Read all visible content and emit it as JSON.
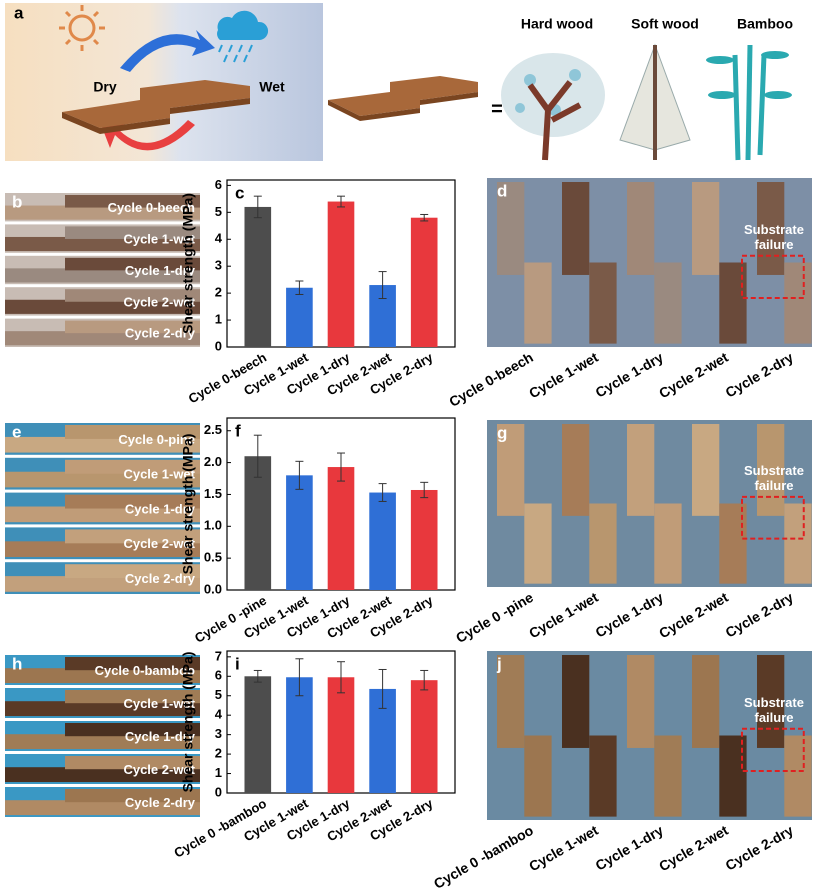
{
  "figure": {
    "panel_a": {
      "label": "a",
      "dry": "Dry",
      "wet": "Wet",
      "equals": "=",
      "woods": [
        "Hard wood",
        "Soft wood",
        "Bamboo"
      ]
    },
    "rows": [
      {
        "photo_label": "b",
        "photo_captions": [
          "Cycle 0-beech",
          "Cycle 1-wet",
          "Cycle 1-dry",
          "Cycle 2-wet",
          "Cycle 2-dry"
        ],
        "chart_label": "c",
        "sample_label": "d",
        "sample_captions": [
          "Cycle 0-beech",
          "Cycle 1-wet",
          "Cycle 1-dry",
          "Cycle 2-wet",
          "Cycle 2-dry"
        ],
        "failure_note": "Substrate failure"
      },
      {
        "photo_label": "e",
        "photo_captions": [
          "Cycle 0-pine",
          "Cycle 1-wet",
          "Cycle 1-dry",
          "Cycle 2-wet",
          "Cycle 2-dry"
        ],
        "chart_label": "f",
        "sample_label": "g",
        "sample_captions": [
          "Cycle 0 -pine",
          "Cycle 1-wet",
          "Cycle 1-dry",
          "Cycle 2-wet",
          "Cycle 2-dry"
        ],
        "failure_note": "Substrate failure"
      },
      {
        "photo_label": "h",
        "photo_captions": [
          "Cycle 0-bamboo",
          "Cycle 1-wet",
          "Cycle 1-dry",
          "Cycle 2-wet",
          "Cycle 2-dry"
        ],
        "chart_label": "i",
        "sample_label": "j",
        "sample_captions": [
          "Cycle 0 -bamboo",
          "Cycle 1-wet",
          "Cycle 1-dry",
          "Cycle 2-wet",
          "Cycle 2-dry"
        ],
        "failure_note": "Substrate failure"
      }
    ]
  },
  "chart_data": [
    {
      "type": "bar",
      "ylabel": "Shear strength (MPa)",
      "categories": [
        "Cycle 0-beech",
        "Cycle 1-wet",
        "Cycle 1-dry",
        "Cycle 2-wet",
        "Cycle 2-dry"
      ],
      "values": [
        5.2,
        2.2,
        5.4,
        2.3,
        4.8
      ],
      "errors": [
        0.4,
        0.25,
        0.2,
        0.5,
        0.12
      ],
      "colors": [
        "#4d4d4d",
        "#2f6fd6",
        "#e8383d",
        "#2f6fd6",
        "#e8383d"
      ],
      "ylim": [
        0,
        6.2
      ],
      "yticks": [
        0,
        1,
        2,
        3,
        4,
        5,
        6
      ]
    },
    {
      "type": "bar",
      "ylabel": "Shear strength (MPa)",
      "categories": [
        "Cycle 0 -pine",
        "Cycle 1-wet",
        "Cycle 1-dry",
        "Cycle 2-wet",
        "Cycle 2-dry"
      ],
      "values": [
        2.1,
        1.8,
        1.93,
        1.53,
        1.57
      ],
      "errors": [
        0.33,
        0.22,
        0.22,
        0.14,
        0.12
      ],
      "colors": [
        "#4d4d4d",
        "#2f6fd6",
        "#e8383d",
        "#2f6fd6",
        "#e8383d"
      ],
      "ylim": [
        0,
        2.7
      ],
      "yticks": [
        {
          "value": 0,
          "label": "0.0"
        },
        0.5,
        {
          "value": 1,
          "label": "1.0"
        },
        1.5,
        {
          "value": 2,
          "label": "2.0"
        },
        2.5
      ]
    },
    {
      "type": "bar",
      "ylabel": "Shear strength (MPa)",
      "categories": [
        "Cycle 0 -bamboo",
        "Cycle 1-wet",
        "Cycle 1-dry",
        "Cycle 2-wet",
        "Cycle 2-dry"
      ],
      "values": [
        6.0,
        5.95,
        5.95,
        5.35,
        5.8
      ],
      "errors": [
        0.3,
        0.95,
        0.8,
        1.0,
        0.5
      ],
      "colors": [
        "#4d4d4d",
        "#2f6fd6",
        "#e8383d",
        "#2f6fd6",
        "#e8383d"
      ],
      "ylim": [
        0,
        7.3
      ],
      "yticks": [
        0,
        1,
        2,
        3,
        4,
        5,
        6,
        7
      ]
    }
  ]
}
